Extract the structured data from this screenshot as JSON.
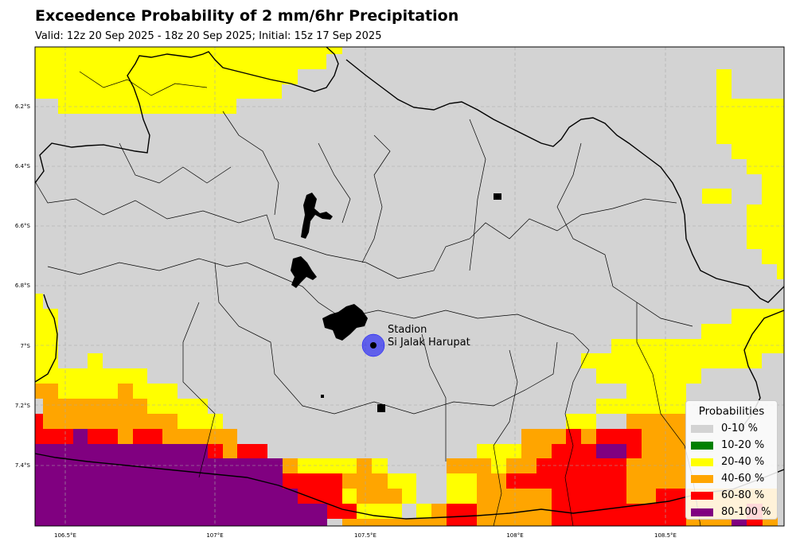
{
  "title": "Exceedence Probability of 2 mm/6hr Precipitation",
  "subtitle": "Valid: 12z 20 Sep 2025 - 18z 20 Sep 2025; Initial: 15z 17 Sep 2025",
  "x_ticks": [
    "106.5°E",
    "107°E",
    "107.5°E",
    "108°E",
    "108.5°E"
  ],
  "y_ticks": [
    "6.2°S",
    "6.4°S",
    "6.6°S",
    "6.8°S",
    "7°S",
    "7.2°S",
    "7.4°S"
  ],
  "marker": {
    "label_line1": "Stadion",
    "label_line2": "Si Jalak Harupat",
    "lon": 107.53,
    "lat": -7.0
  },
  "legend": {
    "title": "Probabilities",
    "items": [
      {
        "label": "0-10 %",
        "color": "#d3d3d3"
      },
      {
        "label": "10-20 %",
        "color": "#008000"
      },
      {
        "label": "20-40 %",
        "color": "#ffff00"
      },
      {
        "label": "40-60 %",
        "color": "#ffa500"
      },
      {
        "label": "60-80 %",
        "color": "#ff0000"
      },
      {
        "label": "80-100 %",
        "color": "#800080"
      }
    ]
  },
  "colors": {
    "background": "#d3d3d3",
    "marker": "#0000ff",
    "grid": "#aaaaaa",
    "coast": "#000000"
  }
}
